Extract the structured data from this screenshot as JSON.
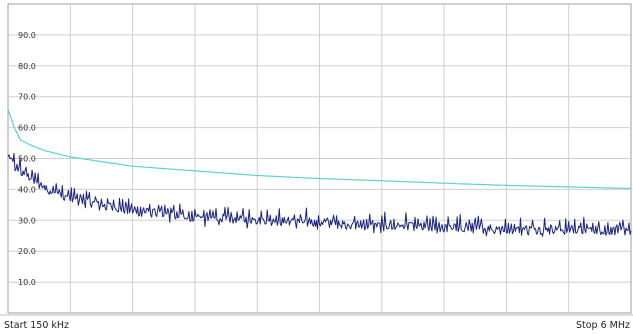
{
  "chart_data": {
    "type": "line",
    "title": "",
    "xlabel": "",
    "ylabel": "",
    "x_range": [
      0,
      1
    ],
    "ylim": [
      0,
      100
    ],
    "y_ticks": [
      "90.0",
      "80.0",
      "70.0",
      "60.0",
      "50.0",
      "40.0",
      "30.0",
      "20.0",
      "10.0"
    ],
    "y_tick_values": [
      90,
      80,
      70,
      60,
      50,
      40,
      30,
      20,
      10
    ],
    "grid": true,
    "start_label": "Start 150 kHz",
    "stop_label": "Stop 6 MHz",
    "series": [
      {
        "role": "limit",
        "color": "#5fd0d0",
        "x": [
          0,
          0.01,
          0.02,
          0.04,
          0.06,
          0.1,
          0.15,
          0.2,
          0.3,
          0.4,
          0.5,
          0.6,
          0.7,
          0.8,
          0.9,
          1.0
        ],
        "y": [
          66.0,
          60.0,
          56.0,
          54.0,
          52.5,
          50.5,
          49.0,
          47.5,
          46.0,
          44.5,
          43.5,
          42.8,
          42.0,
          41.3,
          40.8,
          40.3
        ]
      },
      {
        "role": "measurement",
        "color": "#1a237e",
        "x": [
          0,
          0.01,
          0.02,
          0.04,
          0.06,
          0.08,
          0.1,
          0.15,
          0.2,
          0.25,
          0.3,
          0.35,
          0.4,
          0.45,
          0.5,
          0.55,
          0.6,
          0.65,
          0.7,
          0.75,
          0.8,
          0.85,
          0.9,
          0.95,
          1.0
        ],
        "y": [
          50.0,
          48.0,
          46.0,
          43.0,
          40.0,
          38.5,
          37.0,
          35.0,
          33.0,
          32.0,
          31.0,
          30.5,
          30.0,
          29.5,
          29.0,
          28.5,
          28.0,
          27.8,
          27.5,
          27.3,
          27.0,
          27.0,
          26.8,
          26.8,
          26.5
        ],
        "noise_amplitude": 1.5,
        "spike_amplitude": 3.5,
        "points": 620
      }
    ]
  }
}
